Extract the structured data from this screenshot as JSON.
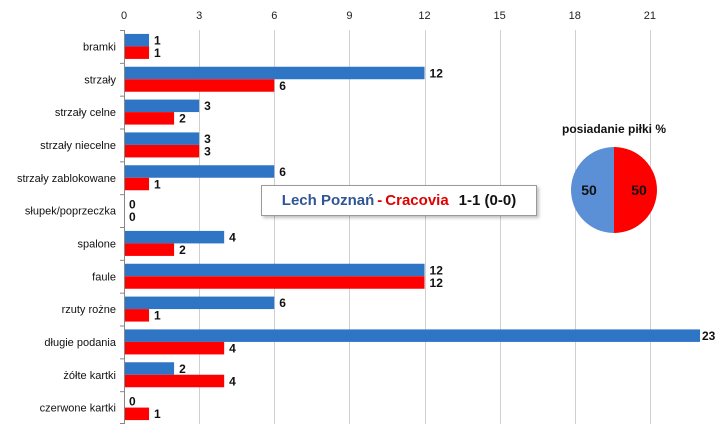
{
  "chart_data": {
    "type": "bar",
    "orientation": "horizontal",
    "categories": [
      "bramki",
      "strzały",
      "strzały celne",
      "strzały niecelne",
      "strzały zablokowane",
      "słupek/poprzeczka",
      "spalone",
      "faule",
      "rzuty rożne",
      "długie podania",
      "żółte kartki",
      "czerwone kartki"
    ],
    "series": [
      {
        "color": "#2e75c6",
        "values": [
          1,
          12,
          3,
          3,
          6,
          0,
          4,
          12,
          6,
          23,
          2,
          0
        ]
      },
      {
        "color": "#ff0000",
        "values": [
          1,
          6,
          2,
          3,
          1,
          0,
          2,
          12,
          1,
          4,
          4,
          1
        ]
      }
    ],
    "xlim": [
      0,
      23
    ],
    "xticks": [
      0,
      3,
      6,
      9,
      12,
      15,
      18,
      21
    ],
    "x_axis_position": "top",
    "grid": true
  },
  "match": {
    "home": "Lech Poznań",
    "separator": "-",
    "away": "Cracovia",
    "score": "1-1 (0-0)"
  },
  "possession": {
    "title": "posiadanie piłki %",
    "home_value": 50,
    "away_value": 50,
    "home_color": "#5b8fd6",
    "away_color": "#ff0000"
  }
}
